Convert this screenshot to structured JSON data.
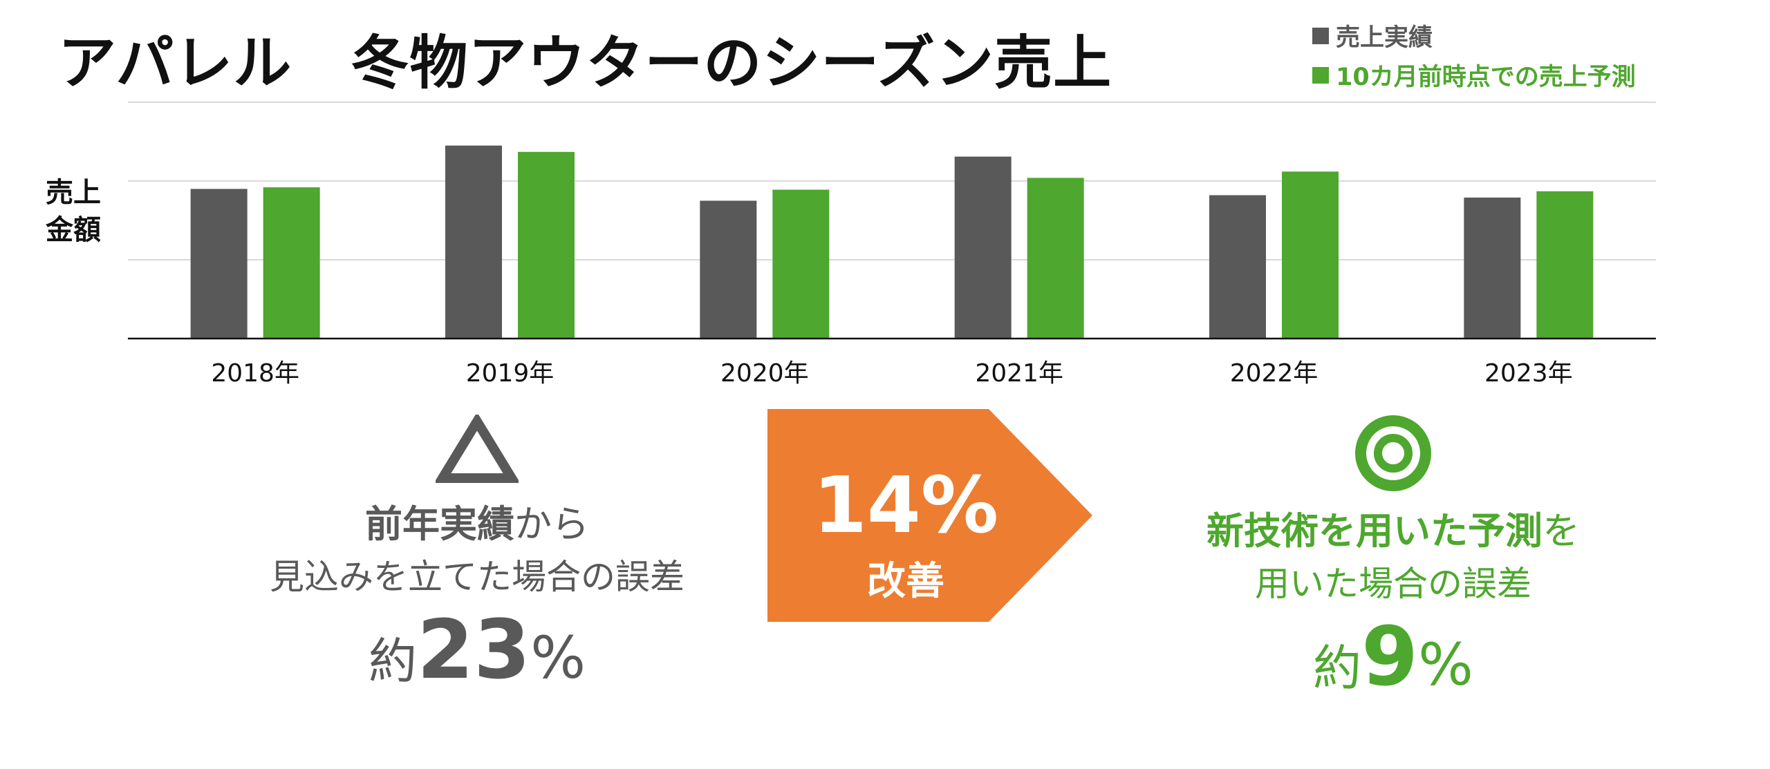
{
  "title": "アパレル　冬物アウターのシーズン売上",
  "colors": {
    "actual": "#595959",
    "forecast": "#4ea72e",
    "arrow": "#ed7d31"
  },
  "legend": {
    "actual": "売上実績",
    "forecast": "10カ月前時点での売上予測"
  },
  "chart_data": {
    "type": "bar",
    "categories": [
      "2018年",
      "2019年",
      "2020年",
      "2021年",
      "2022年",
      "2023年"
    ],
    "series": [
      {
        "name": "売上実績",
        "values": [
          190,
          245,
          175,
          231,
          182,
          179
        ]
      },
      {
        "name": "10カ月前時点での売上予測",
        "values": [
          192,
          237,
          189,
          204,
          212,
          187
        ]
      }
    ],
    "ylabel": "売上金額",
    "ylabel_lines": [
      "売上",
      "金額"
    ],
    "ylim": [
      0,
      300
    ],
    "grid": true,
    "legend_position": "top-right"
  },
  "left_panel": {
    "mark": "triangle",
    "line1_bold": "前年実績",
    "line1_rest": "から",
    "line2": "見込みを立てた場合の誤差",
    "prefix": "約",
    "value": "23",
    "unit": "%"
  },
  "arrow": {
    "value": "14%",
    "label": "改善"
  },
  "right_panel": {
    "mark": "double-circle",
    "line1_bold": "新技術を用いた予測",
    "line1_rest": "を",
    "line2": "用いた場合の誤差",
    "prefix": "約",
    "value": "9",
    "unit": "%"
  }
}
